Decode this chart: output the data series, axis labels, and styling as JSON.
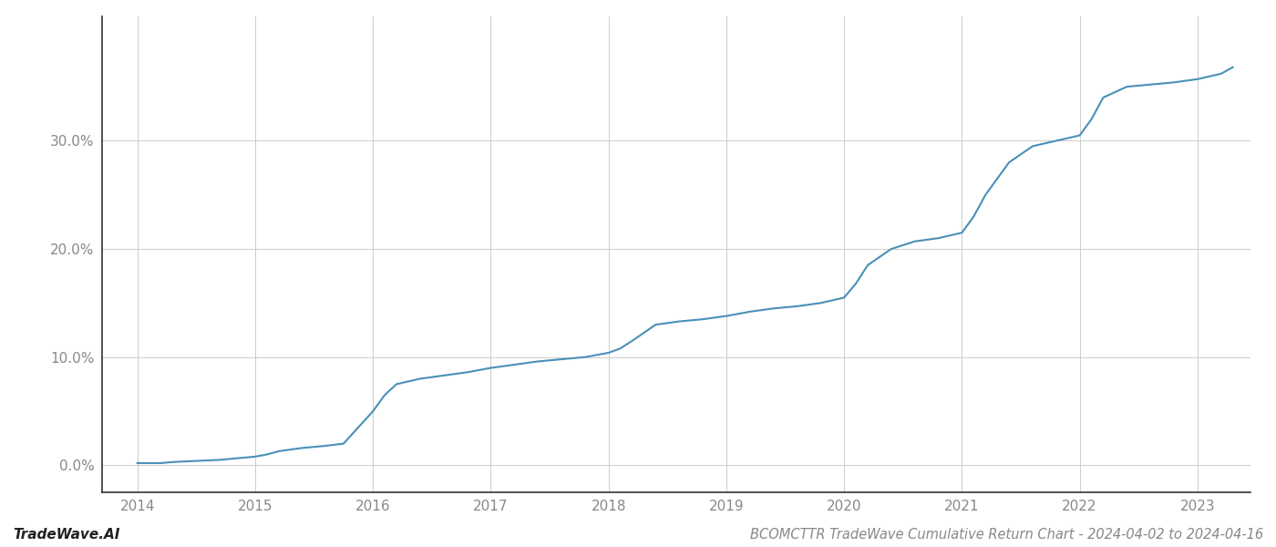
{
  "title": "BCOMCTTR TradeWave Cumulative Return Chart - 2024-04-02 to 2024-04-16",
  "watermark": "TradeWave.AI",
  "line_color": "#4a90b8",
  "background_color": "#ffffff",
  "grid_color": "#cccccc",
  "x_years": [
    2014.0,
    2014.1,
    2014.2,
    2014.3,
    2014.5,
    2014.7,
    2014.9,
    2015.0,
    2015.1,
    2015.2,
    2015.4,
    2015.6,
    2015.75,
    2016.0,
    2016.1,
    2016.2,
    2016.4,
    2016.6,
    2016.8,
    2017.0,
    2017.2,
    2017.4,
    2017.6,
    2017.8,
    2018.0,
    2018.1,
    2018.2,
    2018.4,
    2018.6,
    2018.8,
    2019.0,
    2019.1,
    2019.2,
    2019.4,
    2019.6,
    2019.8,
    2020.0,
    2020.1,
    2020.2,
    2020.4,
    2020.6,
    2020.8,
    2021.0,
    2021.1,
    2021.2,
    2021.4,
    2021.6,
    2021.8,
    2022.0,
    2022.1,
    2022.2,
    2022.4,
    2022.6,
    2022.8,
    2023.0,
    2023.2,
    2023.3
  ],
  "y_values": [
    0.002,
    0.002,
    0.002,
    0.003,
    0.004,
    0.005,
    0.007,
    0.008,
    0.01,
    0.013,
    0.016,
    0.018,
    0.02,
    0.05,
    0.065,
    0.075,
    0.08,
    0.083,
    0.086,
    0.09,
    0.093,
    0.096,
    0.098,
    0.1,
    0.104,
    0.108,
    0.115,
    0.13,
    0.133,
    0.135,
    0.138,
    0.14,
    0.142,
    0.145,
    0.147,
    0.15,
    0.155,
    0.168,
    0.185,
    0.2,
    0.207,
    0.21,
    0.215,
    0.23,
    0.25,
    0.28,
    0.295,
    0.3,
    0.305,
    0.32,
    0.34,
    0.35,
    0.352,
    0.354,
    0.357,
    0.362,
    0.368
  ],
  "xtick_labels": [
    "2014",
    "2015",
    "2016",
    "2017",
    "2018",
    "2019",
    "2020",
    "2021",
    "2022",
    "2023"
  ],
  "xtick_positions": [
    2014,
    2015,
    2016,
    2017,
    2018,
    2019,
    2020,
    2021,
    2022,
    2023
  ],
  "ytick_positions": [
    0.0,
    0.1,
    0.2,
    0.3
  ],
  "ytick_labels": [
    "0.0%",
    "10.0%",
    "20.0%",
    "30.0%"
  ],
  "xlim": [
    2013.7,
    2023.45
  ],
  "ylim": [
    -0.025,
    0.415
  ],
  "line_width": 1.5,
  "title_fontsize": 10.5,
  "tick_fontsize": 11,
  "watermark_fontsize": 11
}
